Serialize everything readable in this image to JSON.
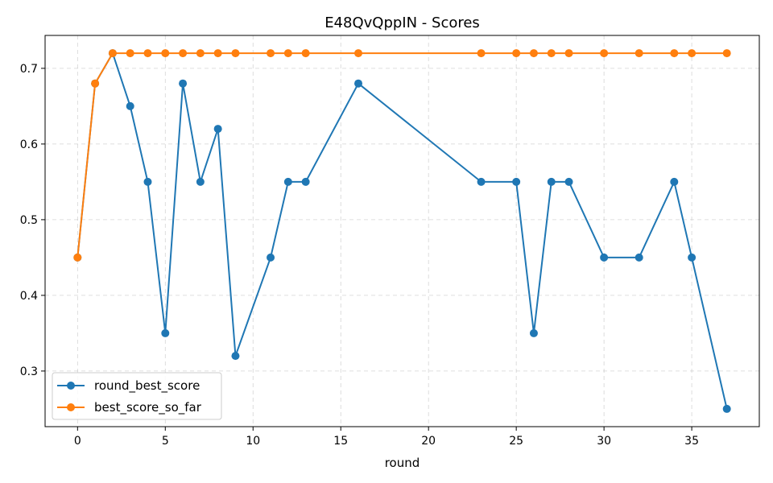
{
  "chart_data": {
    "type": "line",
    "title": "E48QvQppIN - Scores",
    "xlabel": "round",
    "ylabel": "",
    "xlim": [
      -1.85,
      38.85
    ],
    "ylim": [
      0.2265,
      0.7435
    ],
    "xticks": [
      0,
      5,
      10,
      15,
      20,
      25,
      30,
      35
    ],
    "yticks": [
      0.3,
      0.4,
      0.5,
      0.6,
      0.7
    ],
    "grid": true,
    "legend_position": "lower-left",
    "x": [
      0,
      1,
      2,
      3,
      4,
      5,
      6,
      7,
      8,
      9,
      11,
      12,
      13,
      16,
      23,
      25,
      26,
      27,
      28,
      30,
      32,
      34,
      35,
      37
    ],
    "series": [
      {
        "name": "round_best_score",
        "color": "#1f77b4",
        "values": [
          0.45,
          0.68,
          0.72,
          0.65,
          0.55,
          0.35,
          0.68,
          0.55,
          0.62,
          0.32,
          0.45,
          0.55,
          0.55,
          0.68,
          0.55,
          0.55,
          0.35,
          0.55,
          0.55,
          0.45,
          0.45,
          0.55,
          0.45,
          0.25
        ]
      },
      {
        "name": "best_score_so_far",
        "color": "#ff7f0e",
        "values": [
          0.45,
          0.68,
          0.72,
          0.72,
          0.72,
          0.72,
          0.72,
          0.72,
          0.72,
          0.72,
          0.72,
          0.72,
          0.72,
          0.72,
          0.72,
          0.72,
          0.72,
          0.72,
          0.72,
          0.72,
          0.72,
          0.72,
          0.72,
          0.72
        ]
      }
    ]
  }
}
